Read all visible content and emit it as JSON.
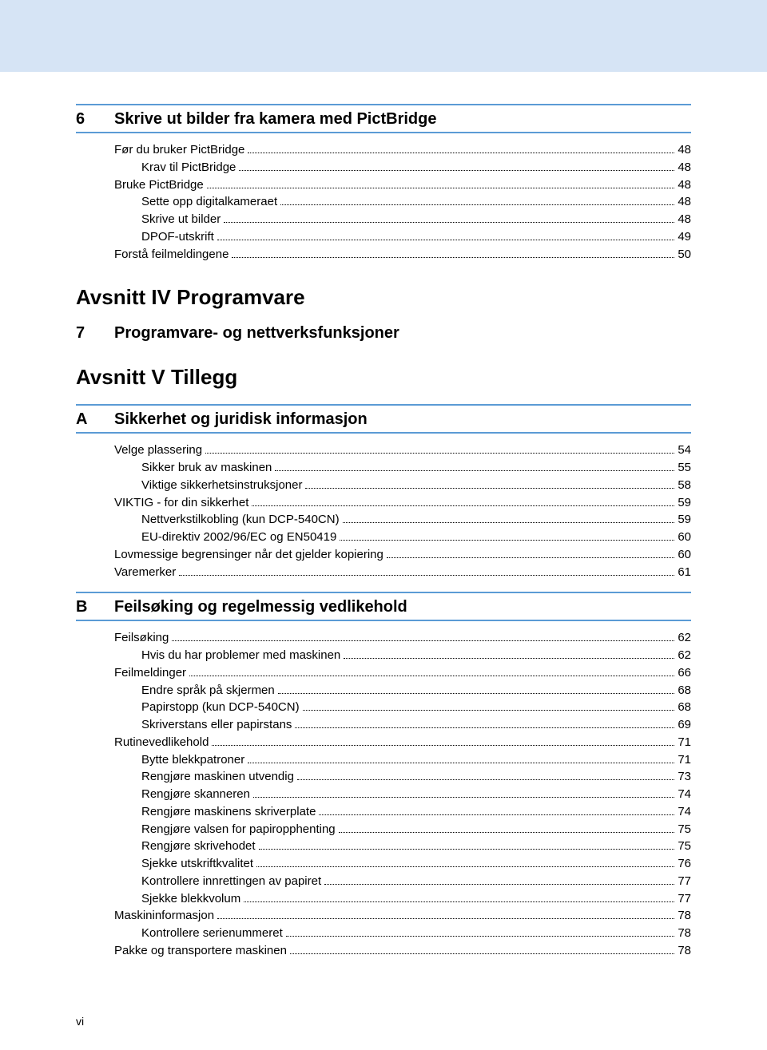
{
  "footer_page": "vi",
  "colors": {
    "band": "#d6e4f5",
    "rule": "#5b9bd5",
    "text": "#000000",
    "bg": "#ffffff"
  },
  "sections": {
    "s6": {
      "num": "6",
      "title": "Skrive ut bilder fra kamera med PictBridge",
      "items": [
        {
          "label": "Før du bruker PictBridge",
          "page": "48",
          "indent": 0
        },
        {
          "label": "Krav til PictBridge",
          "page": "48",
          "indent": 1
        },
        {
          "label": "Bruke PictBridge",
          "page": "48",
          "indent": 0
        },
        {
          "label": "Sette opp digitalkameraet",
          "page": "48",
          "indent": 1
        },
        {
          "label": "Skrive ut bilder",
          "page": "48",
          "indent": 1
        },
        {
          "label": "DPOF-utskrift",
          "page": "49",
          "indent": 1
        },
        {
          "label": "Forstå feilmeldingene",
          "page": "50",
          "indent": 0
        }
      ]
    },
    "avsnitt4": {
      "title": "Avsnitt IV  Programvare"
    },
    "s7": {
      "num": "7",
      "title": "Programvare- og nettverksfunksjoner"
    },
    "avsnitt5": {
      "title": "Avsnitt V  Tillegg"
    },
    "sA": {
      "num": "A",
      "title": "Sikkerhet og juridisk informasjon",
      "items": [
        {
          "label": "Velge plassering",
          "page": "54",
          "indent": 0
        },
        {
          "label": "Sikker bruk av maskinen",
          "page": "55",
          "indent": 1
        },
        {
          "label": "Viktige sikkerhetsinstruksjoner",
          "page": "58",
          "indent": 1
        },
        {
          "label": "VIKTIG - for din sikkerhet",
          "page": "59",
          "indent": 0
        },
        {
          "label": "Nettverkstilkobling (kun DCP-540CN)",
          "page": "59",
          "indent": 1
        },
        {
          "label": "EU-direktiv 2002/96/EC og EN50419",
          "page": "60",
          "indent": 1
        },
        {
          "label": "Lovmessige begrensinger når det gjelder kopiering",
          "page": "60",
          "indent": 0
        },
        {
          "label": "Varemerker",
          "page": "61",
          "indent": 0
        }
      ]
    },
    "sB": {
      "num": "B",
      "title": "Feilsøking og regelmessig vedlikehold",
      "items": [
        {
          "label": "Feilsøking",
          "page": "62",
          "indent": 0
        },
        {
          "label": "Hvis du har problemer med maskinen",
          "page": "62",
          "indent": 1
        },
        {
          "label": "Feilmeldinger",
          "page": "66",
          "indent": 0
        },
        {
          "label": "Endre språk på skjermen",
          "page": "68",
          "indent": 1
        },
        {
          "label": "Papirstopp (kun DCP-540CN)",
          "page": "68",
          "indent": 1
        },
        {
          "label": "Skriverstans eller papirstans",
          "page": "69",
          "indent": 1
        },
        {
          "label": "Rutinevedlikehold",
          "page": "71",
          "indent": 0
        },
        {
          "label": "Bytte blekkpatroner",
          "page": "71",
          "indent": 1
        },
        {
          "label": "Rengjøre maskinen utvendig",
          "page": "73",
          "indent": 1
        },
        {
          "label": "Rengjøre skanneren",
          "page": "74",
          "indent": 1
        },
        {
          "label": "Rengjøre maskinens skriverplate",
          "page": "74",
          "indent": 1
        },
        {
          "label": "Rengjøre valsen for papiropphenting",
          "page": "75",
          "indent": 1
        },
        {
          "label": "Rengjøre skrivehodet",
          "page": "75",
          "indent": 1
        },
        {
          "label": "Sjekke utskriftkvalitet",
          "page": "76",
          "indent": 1
        },
        {
          "label": "Kontrollere innrettingen av papiret",
          "page": "77",
          "indent": 1
        },
        {
          "label": "Sjekke blekkvolum",
          "page": "77",
          "indent": 1
        },
        {
          "label": "Maskininformasjon",
          "page": "78",
          "indent": 0
        },
        {
          "label": "Kontrollere serienummeret",
          "page": "78",
          "indent": 1
        },
        {
          "label": "Pakke og transportere maskinen",
          "page": "78",
          "indent": 0
        }
      ]
    }
  }
}
